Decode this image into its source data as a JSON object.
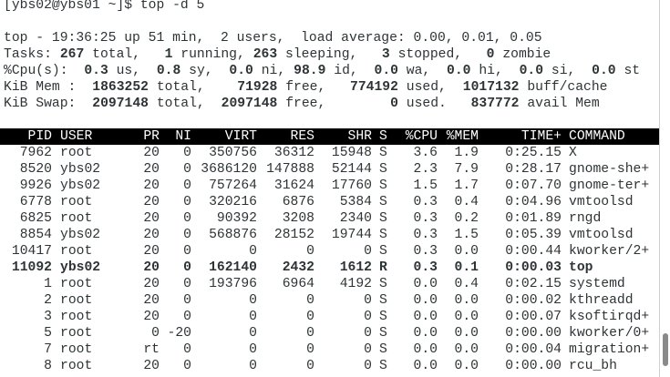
{
  "terminal": {
    "prompt": "[ybs02@ybs01 ~]$ top -d 5",
    "uptime_line": "top - 19:36:25 up 51 min,  2 users,  load average: 0.00, 0.01, 0.05",
    "summary": [
      {
        "label": "Tasks:",
        "items": [
          [
            "267",
            "total,"
          ],
          [
            "1",
            "running,"
          ],
          [
            "263",
            "sleeping,"
          ],
          [
            "3",
            "stopped,"
          ],
          [
            "0",
            "zombie"
          ]
        ]
      },
      {
        "label": "%Cpu(s):",
        "items": [
          [
            "0.3",
            "us,"
          ],
          [
            "0.8",
            "sy,"
          ],
          [
            "0.0",
            "ni,"
          ],
          [
            "98.9",
            "id,"
          ],
          [
            "0.0",
            "wa,"
          ],
          [
            "0.0",
            "hi,"
          ],
          [
            "0.0",
            "si,"
          ],
          [
            "0.0",
            "st"
          ]
        ]
      },
      {
        "label": "KiB Mem :",
        "items": [
          [
            "1863252",
            "total,"
          ],
          [
            "71928",
            "free,"
          ],
          [
            "774192",
            "used,"
          ],
          [
            "1017132",
            "buff/cache"
          ]
        ]
      },
      {
        "label": "KiB Swap:",
        "items": [
          [
            "2097148",
            "total,"
          ],
          [
            "2097148",
            "free,"
          ],
          [
            "0",
            "used."
          ],
          [
            "837772",
            "avail Mem"
          ]
        ]
      }
    ],
    "table": {
      "columns": [
        "PID",
        "USER",
        "PR",
        "NI",
        "VIRT",
        "RES",
        "SHR",
        "S",
        "%CPU",
        "%MEM",
        "TIME+",
        "COMMAND"
      ],
      "rows": [
        [
          "7962",
          "root",
          "20",
          "0",
          "350756",
          "36312",
          "15948",
          "S",
          "3.6",
          "1.9",
          "0:25.15",
          "X"
        ],
        [
          "8520",
          "ybs02",
          "20",
          "0",
          "3686120",
          "147888",
          "52144",
          "S",
          "2.3",
          "7.9",
          "0:28.17",
          "gnome-she+"
        ],
        [
          "9926",
          "ybs02",
          "20",
          "0",
          "757264",
          "31624",
          "17760",
          "S",
          "1.5",
          "1.7",
          "0:07.70",
          "gnome-ter+"
        ],
        [
          "6778",
          "root",
          "20",
          "0",
          "320216",
          "6876",
          "5384",
          "S",
          "0.3",
          "0.4",
          "0:04.96",
          "vmtoolsd"
        ],
        [
          "6825",
          "root",
          "20",
          "0",
          "90392",
          "3208",
          "2340",
          "S",
          "0.3",
          "0.2",
          "0:01.89",
          "rngd"
        ],
        [
          "8854",
          "ybs02",
          "20",
          "0",
          "568876",
          "28152",
          "19744",
          "S",
          "0.3",
          "1.5",
          "0:05.39",
          "vmtoolsd"
        ],
        [
          "10417",
          "root",
          "20",
          "0",
          "0",
          "0",
          "0",
          "S",
          "0.3",
          "0.0",
          "0:00.44",
          "kworker/2+"
        ],
        [
          "11092",
          "ybs02",
          "20",
          "0",
          "162140",
          "2432",
          "1612",
          "R",
          "0.3",
          "0.1",
          "0:00.03",
          "top"
        ],
        [
          "1",
          "root",
          "20",
          "0",
          "193796",
          "6964",
          "4192",
          "S",
          "0.0",
          "0.4",
          "0:02.15",
          "systemd"
        ],
        [
          "2",
          "root",
          "20",
          "0",
          "0",
          "0",
          "0",
          "S",
          "0.0",
          "0.0",
          "0:00.02",
          "kthreadd"
        ],
        [
          "3",
          "root",
          "20",
          "0",
          "0",
          "0",
          "0",
          "S",
          "0.0",
          "0.0",
          "0:00.07",
          "ksoftirqd+"
        ],
        [
          "5",
          "root",
          "0",
          "-20",
          "0",
          "0",
          "0",
          "S",
          "0.0",
          "0.0",
          "0:00.00",
          "kworker/0+"
        ],
        [
          "7",
          "root",
          "rt",
          "0",
          "0",
          "0",
          "0",
          "S",
          "0.0",
          "0.0",
          "0:00.04",
          "migration+"
        ],
        [
          "8",
          "root",
          "20",
          "0",
          "0",
          "0",
          "0",
          "S",
          "0.0",
          "0.0",
          "0:00.00",
          "rcu_bh"
        ]
      ]
    }
  }
}
